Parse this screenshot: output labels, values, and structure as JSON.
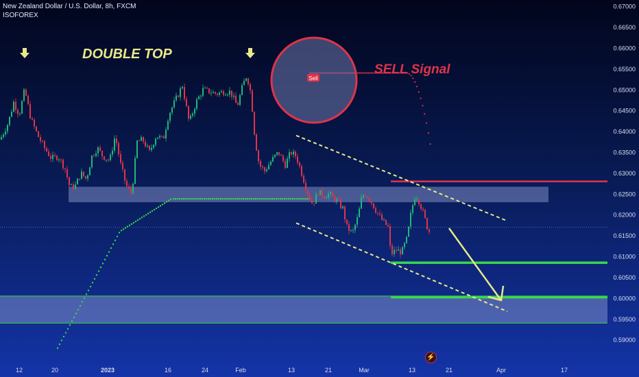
{
  "header": {
    "title": "New Zealand Dollar / U.S. Dollar, 8h, FXCM",
    "source": "ISOFOREX"
  },
  "colors": {
    "up": "#1fb87a",
    "down": "#e0344a",
    "accent_yellow": "#e8e88a",
    "green_line": "#37d84a",
    "red_line": "#e0344a",
    "zone": "#7f8fc8"
  },
  "annotations": {
    "double_top": "DOUBLE TOP",
    "sell_signal": "SELL Signal",
    "sell_tag": "Sell",
    "top_markers": [
      "down-arrow-icon",
      "down-arrow-icon"
    ],
    "bottom_icon": "lightning-icon"
  },
  "chart_data": {
    "type": "candlestick",
    "title": "New Zealand Dollar / U.S. Dollar, 8h, FXCM",
    "ylim": [
      0.5865,
      0.6715
    ],
    "y_ticks": [
      "0.67000",
      "0.66500",
      "0.66000",
      "0.65500",
      "0.65000",
      "0.64500",
      "0.64000",
      "0.63500",
      "0.63000",
      "0.62500",
      "0.62000",
      "0.61500",
      "0.61000",
      "0.60500",
      "0.60000",
      "0.59500",
      "0.59000"
    ],
    "x_ticks": [
      "12",
      "20",
      "2023",
      "16",
      "24",
      "Feb",
      "13",
      "21",
      "Mar",
      "13",
      "21",
      "Apr",
      "17"
    ],
    "price_path": [
      [
        0,
        0.638
      ],
      [
        12,
        0.642
      ],
      [
        20,
        0.647
      ],
      [
        28,
        0.644
      ],
      [
        36,
        0.65
      ],
      [
        45,
        0.643
      ],
      [
        55,
        0.639
      ],
      [
        65,
        0.636
      ],
      [
        75,
        0.6335
      ],
      [
        85,
        0.634
      ],
      [
        95,
        0.631
      ],
      [
        102,
        0.6265
      ],
      [
        110,
        0.627
      ],
      [
        118,
        0.63
      ],
      [
        126,
        0.6285
      ],
      [
        134,
        0.634
      ],
      [
        142,
        0.636
      ],
      [
        150,
        0.634
      ],
      [
        160,
        0.633
      ],
      [
        168,
        0.639
      ],
      [
        176,
        0.632
      ],
      [
        184,
        0.627
      ],
      [
        192,
        0.625
      ],
      [
        200,
        0.6375
      ],
      [
        208,
        0.638
      ],
      [
        218,
        0.635
      ],
      [
        228,
        0.639
      ],
      [
        238,
        0.638
      ],
      [
        246,
        0.644
      ],
      [
        256,
        0.6475
      ],
      [
        266,
        0.651
      ],
      [
        276,
        0.642
      ],
      [
        286,
        0.647
      ],
      [
        296,
        0.65
      ],
      [
        306,
        0.6495
      ],
      [
        316,
        0.649
      ],
      [
        326,
        0.6495
      ],
      [
        336,
        0.6495
      ],
      [
        346,
        0.646
      ],
      [
        354,
        0.651
      ],
      [
        360,
        0.6535
      ],
      [
        366,
        0.649
      ],
      [
        372,
        0.638
      ],
      [
        378,
        0.632
      ],
      [
        386,
        0.6305
      ],
      [
        396,
        0.633
      ],
      [
        406,
        0.635
      ],
      [
        416,
        0.632
      ],
      [
        424,
        0.635
      ],
      [
        432,
        0.634
      ],
      [
        440,
        0.63
      ],
      [
        448,
        0.6255
      ],
      [
        456,
        0.6225
      ],
      [
        464,
        0.6255
      ],
      [
        472,
        0.6245
      ],
      [
        480,
        0.625
      ],
      [
        490,
        0.6235
      ],
      [
        500,
        0.6215
      ],
      [
        506,
        0.617
      ],
      [
        514,
        0.6155
      ],
      [
        522,
        0.6195
      ],
      [
        528,
        0.6245
      ],
      [
        534,
        0.625
      ],
      [
        542,
        0.623
      ],
      [
        550,
        0.6205
      ],
      [
        558,
        0.6185
      ],
      [
        566,
        0.617
      ],
      [
        570,
        0.6105
      ],
      [
        578,
        0.6115
      ],
      [
        586,
        0.611
      ],
      [
        594,
        0.6145
      ],
      [
        600,
        0.621
      ],
      [
        606,
        0.625
      ],
      [
        612,
        0.623
      ],
      [
        618,
        0.62
      ],
      [
        624,
        0.6165
      ],
      [
        628,
        0.6155
      ]
    ],
    "horizontal_levels": [
      {
        "name": "red_resistance",
        "y": 0.628,
        "x_start": 570,
        "x_end": 886
      },
      {
        "name": "green_support_1",
        "y": 0.6085,
        "x_start": 570,
        "x_end": 886
      },
      {
        "name": "green_support_2",
        "y": 0.6002,
        "x_start": 570,
        "x_end": 886
      }
    ],
    "zones": [
      {
        "name": "upper_zone",
        "y_top": 0.6267,
        "y_bottom": 0.623,
        "x_start": 100,
        "x_end": 800
      },
      {
        "name": "lower_zone",
        "y_top": 0.6005,
        "y_bottom": 0.594,
        "x_start": 0,
        "x_end": 886
      }
    ],
    "channel": {
      "upper": [
        [
          432,
          0.639
        ],
        [
          740,
          0.6185
        ]
      ],
      "lower": [
        [
          432,
          0.618
        ],
        [
          740,
          0.5968
        ]
      ]
    },
    "current_price": 0.617
  }
}
